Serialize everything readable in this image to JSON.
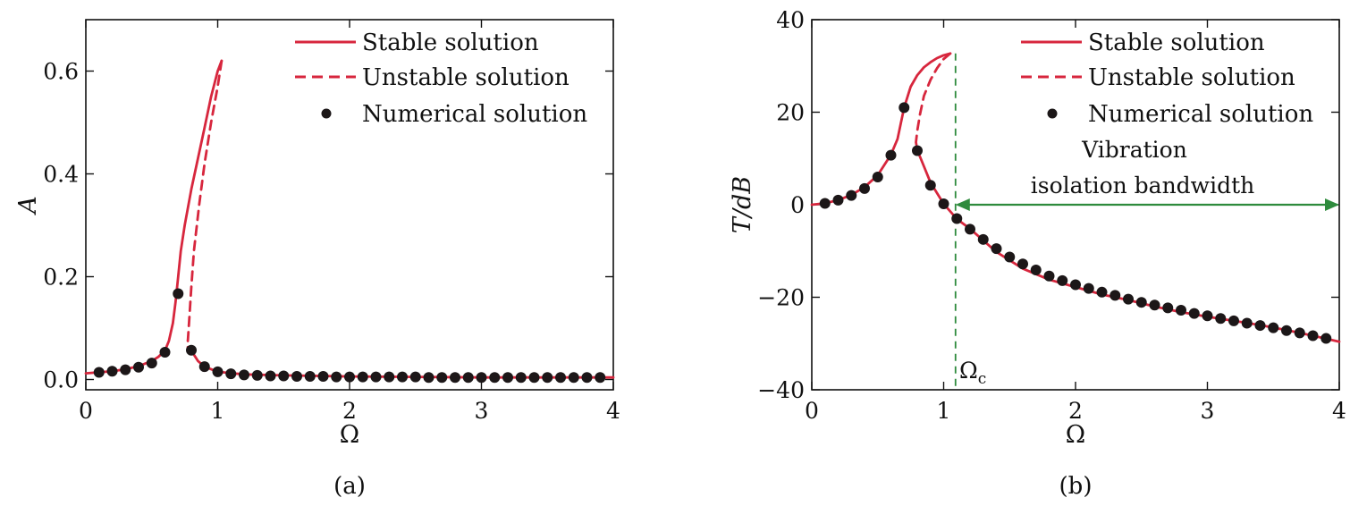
{
  "colors": {
    "stable": "#d7263d",
    "unstable": "#d7263d",
    "numerical": "#1c1718",
    "bandwidth": "#2e8b3d",
    "cutoff": "#2e8b3d",
    "axes": "#111111"
  },
  "chart_data": [
    {
      "id": "a",
      "type": "line",
      "caption": "(a)",
      "xlabel": "Ω",
      "ylabel": "A",
      "xlim": [
        0,
        4
      ],
      "ylim": [
        -0.02,
        0.7
      ],
      "xticks": [
        0,
        1,
        2,
        3,
        4
      ],
      "xtick_labels": [
        "0",
        "1",
        "2",
        "3",
        "4"
      ],
      "yticks": [
        0.0,
        0.2,
        0.4,
        0.6
      ],
      "ytick_labels": [
        "0.0",
        "0.2",
        "0.4",
        "0.6"
      ],
      "grid": false,
      "legend": {
        "position": "top-right",
        "entries": [
          {
            "label": "Stable solution",
            "style": "solid"
          },
          {
            "label": "Unstable solution",
            "style": "dashed"
          },
          {
            "label": "Numerical solution",
            "style": "marker"
          }
        ]
      },
      "series": [
        {
          "name": "Stable solution",
          "style": "solid",
          "segments": [
            {
              "x": [
                0,
                0.1,
                0.2,
                0.3,
                0.4,
                0.5,
                0.55,
                0.6,
                0.63,
                0.66,
                0.68,
                0.7,
                0.72,
                0.75,
                0.8,
                0.85,
                0.9,
                0.95,
                1.0,
                1.03
              ],
              "y": [
                0.012,
                0.014,
                0.016,
                0.02,
                0.026,
                0.036,
                0.044,
                0.056,
                0.075,
                0.11,
                0.15,
                0.2,
                0.25,
                0.3,
                0.37,
                0.43,
                0.49,
                0.55,
                0.6,
                0.62
              ]
            },
            {
              "x": [
                0.8,
                0.85,
                0.9,
                1.0,
                1.2,
                1.5,
                2.0,
                2.5,
                3.0,
                3.5,
                4.0
              ],
              "y": [
                0.056,
                0.036,
                0.025,
                0.015,
                0.01,
                0.008,
                0.006,
                0.005,
                0.004,
                0.004,
                0.004
              ]
            }
          ]
        },
        {
          "name": "Unstable solution",
          "style": "dashed",
          "segments": [
            {
              "x": [
                1.03,
                1.0,
                0.95,
                0.9,
                0.86,
                0.82,
                0.8,
                0.785,
                0.775,
                0.77,
                0.78,
                0.8
              ],
              "y": [
                0.62,
                0.57,
                0.5,
                0.42,
                0.34,
                0.25,
                0.18,
                0.12,
                0.08,
                0.065,
                0.058,
                0.056
              ]
            }
          ]
        },
        {
          "name": "Numerical solution",
          "style": "marker",
          "x": [
            0.1,
            0.2,
            0.3,
            0.4,
            0.5,
            0.6,
            0.7,
            0.8,
            0.9,
            1.0,
            1.1,
            1.2,
            1.3,
            1.4,
            1.5,
            1.6,
            1.7,
            1.8,
            1.9,
            2.0,
            2.1,
            2.2,
            2.3,
            2.4,
            2.5,
            2.6,
            2.7,
            2.8,
            2.9,
            3.0,
            3.1,
            3.2,
            3.3,
            3.4,
            3.5,
            3.6,
            3.7,
            3.8,
            3.9
          ],
          "y": [
            0.014,
            0.016,
            0.019,
            0.024,
            0.032,
            0.053,
            0.167,
            0.057,
            0.025,
            0.015,
            0.011,
            0.009,
            0.008,
            0.007,
            0.007,
            0.006,
            0.006,
            0.006,
            0.005,
            0.005,
            0.005,
            0.005,
            0.005,
            0.005,
            0.005,
            0.004,
            0.004,
            0.004,
            0.004,
            0.004,
            0.004,
            0.004,
            0.004,
            0.004,
            0.004,
            0.004,
            0.004,
            0.004,
            0.004
          ]
        }
      ]
    },
    {
      "id": "b",
      "type": "line",
      "caption": "(b)",
      "xlabel": "Ω",
      "ylabel": "T/dB",
      "xlim": [
        0,
        4
      ],
      "ylim": [
        -40,
        40
      ],
      "xticks": [
        0,
        1,
        2,
        3,
        4
      ],
      "xtick_labels": [
        "0",
        "1",
        "2",
        "3",
        "4"
      ],
      "yticks": [
        -40,
        -20,
        0,
        20,
        40
      ],
      "ytick_labels": [
        "−40",
        "−20",
        "0",
        "20",
        "40"
      ],
      "grid": false,
      "legend": {
        "position": "top-right",
        "entries": [
          {
            "label": "Stable solution",
            "style": "solid"
          },
          {
            "label": "Unstable solution",
            "style": "dashed"
          },
          {
            "label": "Numerical solution",
            "style": "marker"
          }
        ]
      },
      "annotations": {
        "bandwidth_label_line1": "Vibration",
        "bandwidth_label_line2": "isolation bandwidth",
        "bandwidth_y": 0,
        "bandwidth_x_start": 1.09,
        "bandwidth_x_end": 4.0,
        "cutoff_x": 1.09,
        "cutoff_label": "Ω",
        "cutoff_subscript": "c"
      },
      "series": [
        {
          "name": "Stable solution",
          "style": "solid",
          "segments": [
            {
              "x": [
                0,
                0.1,
                0.2,
                0.3,
                0.4,
                0.5,
                0.6,
                0.65,
                0.7,
                0.75,
                0.8,
                0.85,
                0.9,
                0.95,
                1.0,
                1.05
              ],
              "y": [
                0,
                0.3,
                1.0,
                2.1,
                3.8,
                6.4,
                10.8,
                14.2,
                21,
                25.5,
                28,
                29.7,
                30.8,
                31.7,
                32.3,
                32.7
              ]
            },
            {
              "x": [
                0.8,
                0.85,
                0.9,
                1.0,
                1.1,
                1.2,
                1.4,
                1.6,
                1.8,
                2.0,
                2.2,
                2.4,
                2.6,
                2.8,
                3.0,
                3.2,
                3.4,
                3.6,
                3.8,
                4.0
              ],
              "y": [
                11.8,
                8.3,
                4.8,
                0.2,
                -3.1,
                -5.2,
                -10.2,
                -13.8,
                -16.2,
                -17.8,
                -19.4,
                -20.6,
                -22,
                -23.2,
                -24.2,
                -25.1,
                -26,
                -27.1,
                -28.3,
                -29.6
              ]
            }
          ]
        },
        {
          "name": "Unstable solution",
          "style": "dashed",
          "segments": [
            {
              "x": [
                1.05,
                1.0,
                0.95,
                0.9,
                0.85,
                0.82,
                0.8,
                0.79,
                0.8
              ],
              "y": [
                32.7,
                31.5,
                29.5,
                27,
                23.5,
                19.5,
                16,
                13.5,
                11.8
              ]
            }
          ]
        },
        {
          "name": "Numerical solution",
          "style": "marker",
          "x": [
            0.1,
            0.2,
            0.3,
            0.4,
            0.5,
            0.6,
            0.7,
            0.8,
            0.9,
            1.0,
            1.1,
            1.2,
            1.3,
            1.4,
            1.5,
            1.6,
            1.7,
            1.8,
            1.9,
            2.0,
            2.1,
            2.2,
            2.3,
            2.4,
            2.5,
            2.6,
            2.7,
            2.8,
            2.9,
            3.0,
            3.1,
            3.2,
            3.3,
            3.4,
            3.5,
            3.6,
            3.7,
            3.8,
            3.9
          ],
          "y": [
            0.3,
            1.0,
            2.0,
            3.5,
            6.0,
            10.7,
            21,
            11.7,
            4.2,
            0.2,
            -3,
            -5.3,
            -7.5,
            -9.5,
            -11.3,
            -12.8,
            -14.1,
            -15.4,
            -16.4,
            -17.3,
            -18.1,
            -18.9,
            -19.6,
            -20.4,
            -21.1,
            -21.7,
            -22.3,
            -22.8,
            -23.5,
            -24.0,
            -24.6,
            -25.1,
            -25.6,
            -26.1,
            -26.6,
            -27.2,
            -27.7,
            -28.3,
            -28.9
          ]
        }
      ]
    }
  ]
}
